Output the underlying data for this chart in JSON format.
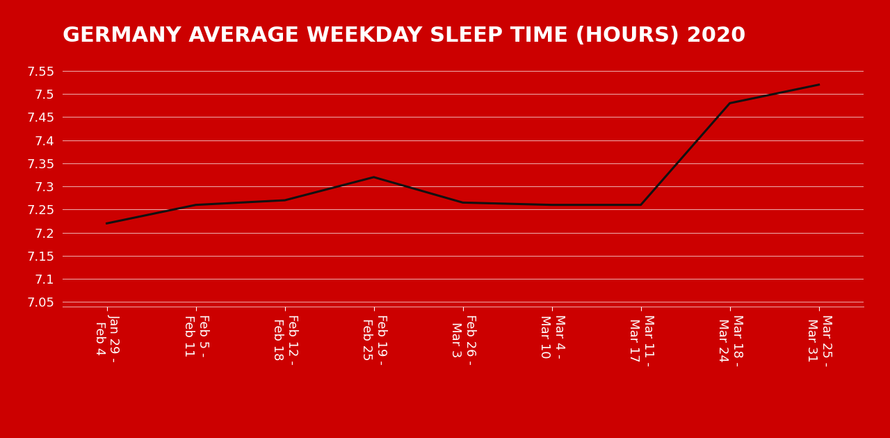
{
  "title": "GERMANY AVERAGE WEEKDAY SLEEP TIME (HOURS) 2020",
  "background_color": "#cc0000",
  "line_color": "#111111",
  "text_color": "#ffffff",
  "grid_color": "#ffffff",
  "x_labels": [
    "Jan 29 -\nFeb 4",
    "Feb 5 -\nFeb 11",
    "Feb 12 -\nFeb 18",
    "Feb 19 -\nFeb 25",
    "Feb 26 -\nMar 3",
    "Mar 4 -\nMar 10",
    "Mar 11 -\nMar 17",
    "Mar 18 -\nMar 24",
    "Mar 25 -\nMar 31"
  ],
  "y_values": [
    7.22,
    7.26,
    7.27,
    7.32,
    7.265,
    7.26,
    7.26,
    7.48,
    7.52
  ],
  "ylim_min": 7.04,
  "ylim_max": 7.58,
  "yticks": [
    7.05,
    7.1,
    7.15,
    7.2,
    7.25,
    7.3,
    7.35,
    7.4,
    7.45,
    7.5,
    7.55
  ],
  "ytick_labels": [
    "7.05",
    "7.1",
    "7.15",
    "7.2",
    "7.25",
    "7.3",
    "7.35",
    "7.4",
    "7.45",
    "7.5",
    "7.55"
  ],
  "title_fontsize": 22,
  "tick_fontsize": 13,
  "line_width": 2.2
}
